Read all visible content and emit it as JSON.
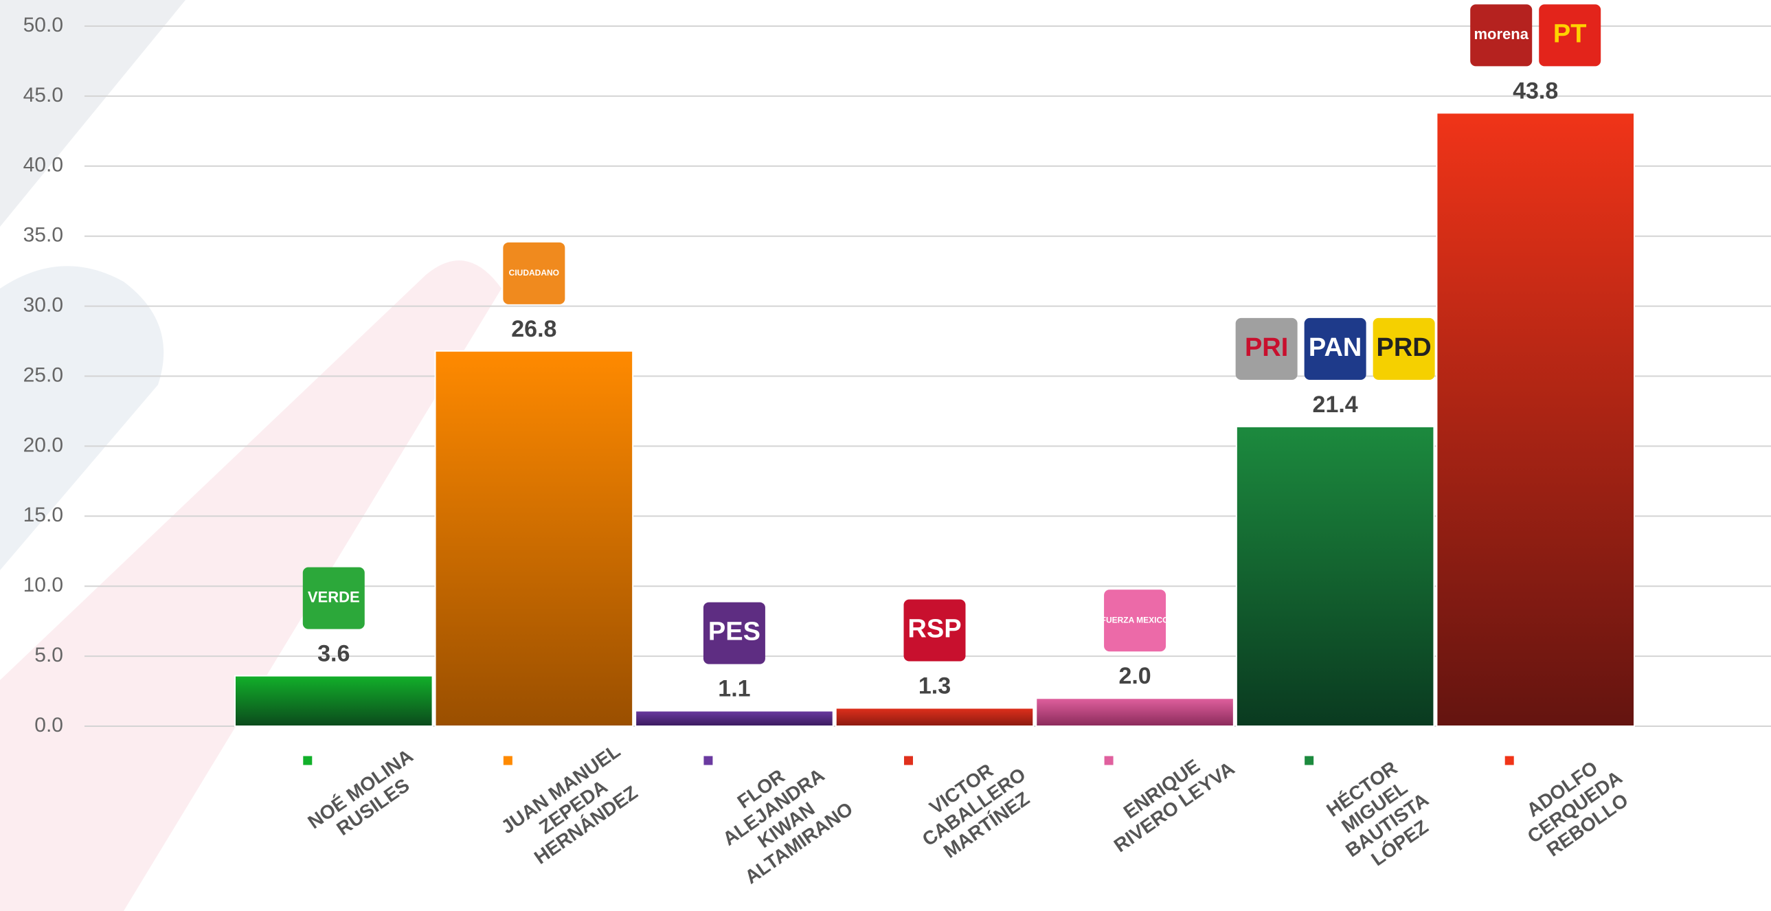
{
  "chart_data": {
    "type": "bar",
    "categories": [
      [
        "NOÉ MOLINA",
        "RUSILES"
      ],
      [
        "JUAN MANUEL",
        "ZEPEDA",
        "HERNÁNDEZ"
      ],
      [
        "FLOR",
        "ALEJANDRA",
        "KIWAN",
        "ALTAMIRANO"
      ],
      [
        "VICTOR",
        "CABALLERO",
        "MARTÍNEZ"
      ],
      [
        "ENRIQUE",
        "RIVERO LEYVA"
      ],
      [
        "HÉCTOR",
        "MIGUEL",
        "BAUTISTA",
        "LÓPEZ"
      ],
      [
        "ADOLFO",
        "CERQUEDA",
        "REBOLLO"
      ]
    ],
    "values": [
      3.6,
      26.8,
      1.1,
      1.3,
      2.0,
      21.4,
      43.8
    ],
    "value_labels": [
      "3.6",
      "26.8",
      "1.1",
      "1.3",
      "2.0",
      "21.4",
      "43.8"
    ],
    "colors": [
      [
        "#12b02a",
        "#0b4a1c"
      ],
      [
        "#ff8a00",
        "#9a4f00"
      ],
      [
        "#6a3aa0",
        "#3a1a5e"
      ],
      [
        "#e0301c",
        "#8a1a10"
      ],
      [
        "#e0609e",
        "#8a2a5a"
      ],
      [
        "#1c8a3e",
        "#0a3a20"
      ],
      [
        "#f03418",
        "#641410"
      ]
    ],
    "logos": [
      [
        {
          "text": "VERDE",
          "color": "#2ca83a",
          "ink": "#ffffff"
        }
      ],
      [
        {
          "text": "CIUDADANO",
          "color": "#f08a1e",
          "ink": "#ffffff"
        }
      ],
      [
        {
          "text": "PES",
          "color": "#5e2d82",
          "ink": "#ffffff"
        }
      ],
      [
        {
          "text": "RSP",
          "color": "#c8102e",
          "ink": "#ffffff"
        }
      ],
      [
        {
          "text": "FUERZA MEXICO",
          "color": "#ec6aa8",
          "ink": "#ffffff"
        }
      ],
      [
        {
          "text": "PRI",
          "color": "#a0a0a0",
          "ink": "#c8102e"
        },
        {
          "text": "PAN",
          "color": "#1e3a8a",
          "ink": "#ffffff"
        },
        {
          "text": "PRD",
          "color": "#f5d000",
          "ink": "#222222"
        }
      ],
      [
        {
          "text": "morena",
          "color": "#b5221f",
          "ink": "#ffffff"
        },
        {
          "text": "PT",
          "color": "#e3241b",
          "ink": "#ffd200"
        }
      ]
    ],
    "ylim": [
      0,
      50
    ],
    "yticks": [
      {
        "value": 0,
        "label": "0.0"
      },
      {
        "value": 5,
        "label": "5.0"
      },
      {
        "value": 10,
        "label": "10.0"
      },
      {
        "value": 15,
        "label": "15.0"
      },
      {
        "value": 20,
        "label": "20.0"
      },
      {
        "value": 25,
        "label": "25.0"
      },
      {
        "value": 30,
        "label": "30.0"
      },
      {
        "value": 35,
        "label": "35.0"
      },
      {
        "value": 40,
        "label": "40.0"
      },
      {
        "value": 45,
        "label": "45.0"
      },
      {
        "value": 50,
        "label": "50.0"
      }
    ],
    "grid": true
  }
}
